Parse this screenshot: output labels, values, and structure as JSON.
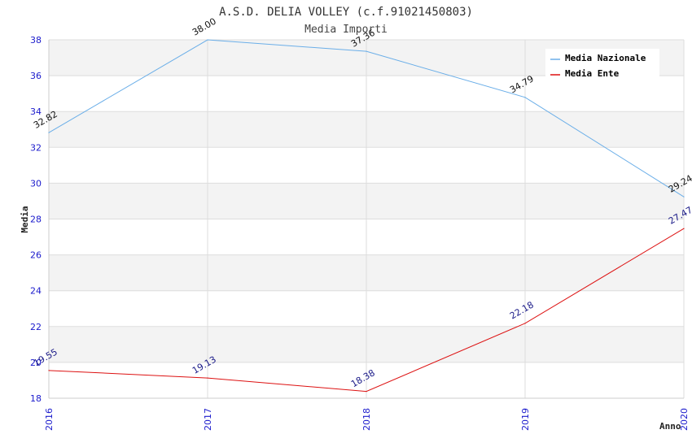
{
  "chart_data": {
    "type": "line",
    "title": "A.S.D. DELIA VOLLEY (c.f.91021450803)",
    "subtitle": "Media Importi",
    "xlabel": "Anno",
    "ylabel": "Media",
    "categories": [
      "2016",
      "2017",
      "2018",
      "2019",
      "2020"
    ],
    "ylim": [
      18,
      38
    ],
    "yticks": [
      18,
      20,
      22,
      24,
      26,
      28,
      30,
      32,
      34,
      36,
      38
    ],
    "grid": true,
    "legend_position": "top-right",
    "series": [
      {
        "name": "Media Nazionale",
        "color": "#6aaee8",
        "label_color": "#111111",
        "values": [
          32.82,
          38.0,
          37.36,
          34.79,
          29.24
        ],
        "labels": [
          "32.82",
          "38.00",
          "37.36",
          "34.79",
          "29.24"
        ]
      },
      {
        "name": "Media Ente",
        "color": "#dd1111",
        "label_color": "#1a1a88",
        "values": [
          19.55,
          19.13,
          18.38,
          22.18,
          27.47
        ],
        "labels": [
          "19.55",
          "19.13",
          "18.38",
          "22.18",
          "27.47"
        ]
      }
    ]
  }
}
